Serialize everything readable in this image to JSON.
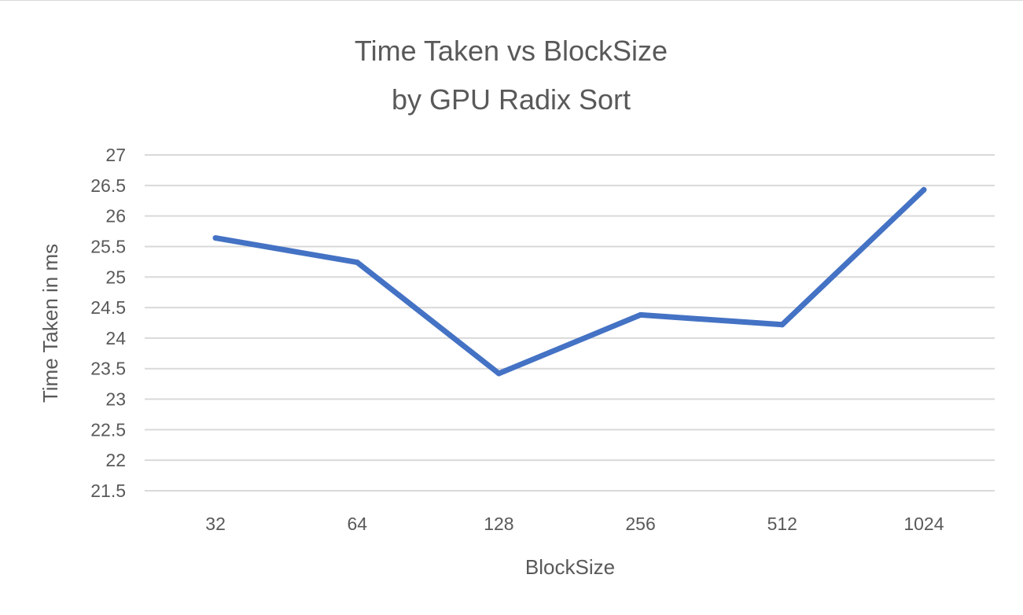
{
  "chart_data": {
    "type": "line",
    "title_lines": [
      "Time Taken vs BlockSize",
      "by GPU Radix Sort"
    ],
    "xlabel": "BlockSize",
    "ylabel": "Time Taken in ms",
    "categories": [
      "32",
      "64",
      "128",
      "256",
      "512",
      "1024"
    ],
    "series": [
      {
        "values": [
          25.64,
          25.24,
          23.42,
          24.38,
          24.22,
          26.43
        ],
        "color": "#4472C4"
      }
    ],
    "ylim": [
      21.5,
      27
    ],
    "yticks": [
      21.5,
      22,
      22.5,
      23,
      23.5,
      24,
      24.5,
      25,
      25.5,
      26,
      26.5,
      27
    ],
    "ytick_labels": [
      "21.5",
      "22",
      "22.5",
      "23",
      "23.5",
      "24",
      "24.5",
      "25",
      "25.5",
      "26",
      "26.5",
      "27"
    ],
    "grid": true,
    "legend": "none"
  }
}
